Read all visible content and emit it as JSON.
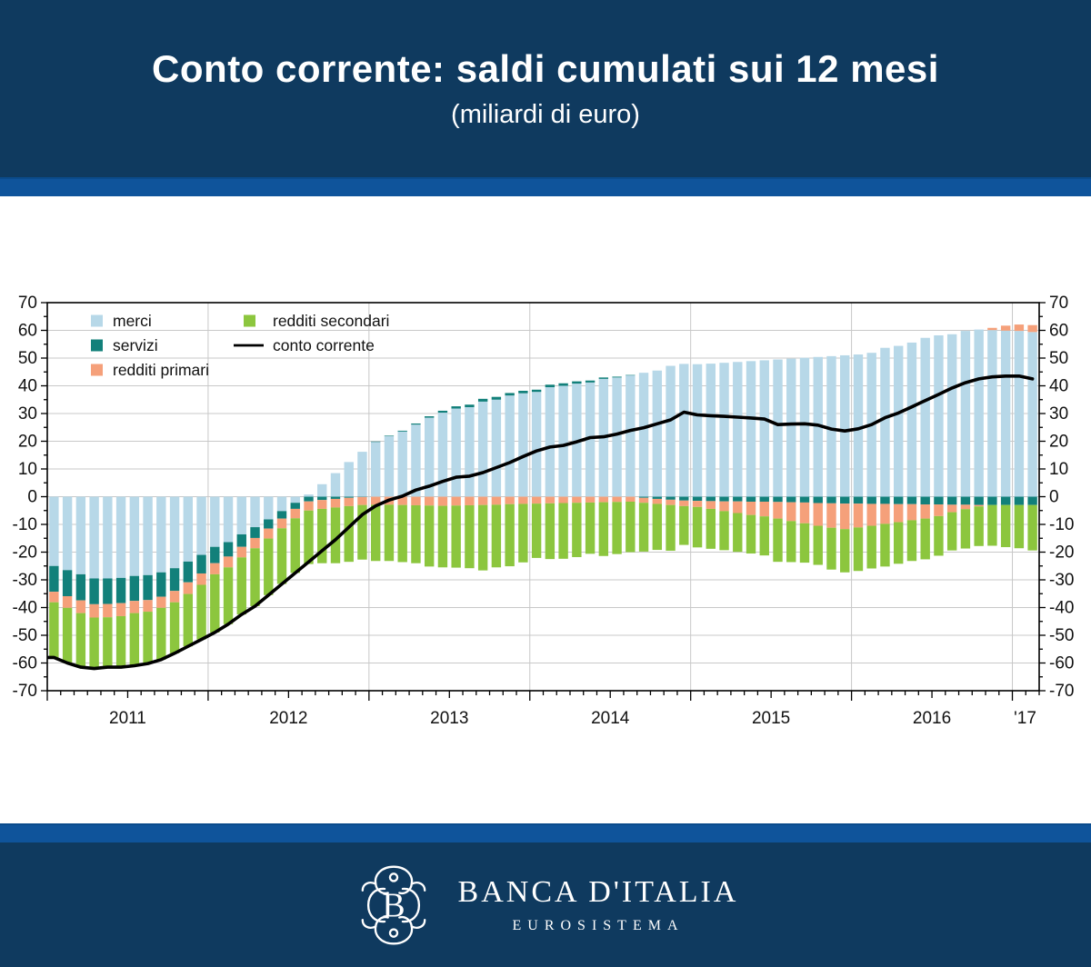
{
  "header": {
    "title": "Conto corrente: saldi cumulati sui 12 mesi",
    "subtitle": "(miliardi di euro)"
  },
  "footer": {
    "name": "BANCA D'ITALIA",
    "subtitle": "EUROSISTEMA",
    "emblem_letter": "B"
  },
  "colors": {
    "navy_band": "#0F3A5F",
    "blue_stripe": "#0F549B",
    "grid": "#C8C8C8",
    "axis": "#000000"
  },
  "chart_data": {
    "type": "stacked-bar-line",
    "title": "Conto corrente: saldi cumulati sui 12 mesi",
    "unit": "miliardi di euro",
    "x": {
      "start": "2011-01",
      "end": "2017-02",
      "n_months": 74,
      "frequency": "monthly"
    },
    "x_tick_labels": [
      "2011",
      "2012",
      "2013",
      "2014",
      "2015",
      "2016",
      "'17"
    ],
    "ylim": [
      -70,
      70
    ],
    "ytick_step": 10,
    "ytick_minor_step": 5,
    "grid": true,
    "legend_position": "top-left",
    "legend_columns": [
      [
        "merci",
        "servizi",
        "redditi primari"
      ],
      [
        "redditi secondari",
        "conto corrente"
      ]
    ],
    "series": [
      {
        "name": "merci",
        "type": "bar",
        "color": "#B7D8E8",
        "values": [
          -25.0,
          -26.5,
          -28.0,
          -29.5,
          -29.5,
          -29.3,
          -28.6,
          -28.3,
          -27.3,
          -25.8,
          -23.4,
          -21.0,
          -18.1,
          -16.4,
          -13.6,
          -11.0,
          -8.2,
          -5.2,
          -2.2,
          0.8,
          4.5,
          8.5,
          12.5,
          16.2,
          19.8,
          21.8,
          23.5,
          26.0,
          28.5,
          30.3,
          31.8,
          32.3,
          34.3,
          35.0,
          36.5,
          37.3,
          37.8,
          39.5,
          40.0,
          40.8,
          41.2,
          42.5,
          43.0,
          43.8,
          44.7,
          45.5,
          47.2,
          47.9,
          47.8,
          48.0,
          48.3,
          48.6,
          48.9,
          49.2,
          49.5,
          49.8,
          50.1,
          50.4,
          50.7,
          51.0,
          51.3,
          51.9,
          53.7,
          54.4,
          55.6,
          57.3,
          58.2,
          58.6,
          59.8,
          60.3,
          60.1,
          59.9,
          59.8,
          59.4
        ]
      },
      {
        "name": "servizi",
        "type": "bar",
        "color": "#12807A",
        "values": [
          -9.3,
          -9.4,
          -9.4,
          -9.3,
          -9.2,
          -9.1,
          -9.0,
          -9.0,
          -8.8,
          -8.2,
          -7.5,
          -6.7,
          -5.9,
          -5.2,
          -4.5,
          -3.9,
          -3.3,
          -2.7,
          -2.2,
          -1.7,
          -1.2,
          -0.8,
          -0.4,
          -0.1,
          0.1,
          0.2,
          0.3,
          0.4,
          0.5,
          0.7,
          0.8,
          0.9,
          1.0,
          1.0,
          0.9,
          0.9,
          0.8,
          0.9,
          0.9,
          0.8,
          0.7,
          0.5,
          0.3,
          0.1,
          -0.4,
          -0.8,
          -1.1,
          -1.4,
          -1.5,
          -1.6,
          -1.7,
          -1.7,
          -1.8,
          -1.8,
          -1.9,
          -2.0,
          -2.1,
          -2.3,
          -2.4,
          -2.5,
          -2.5,
          -2.6,
          -2.6,
          -2.7,
          -2.7,
          -2.8,
          -2.8,
          -2.9,
          -2.9,
          -3.0,
          -3.0,
          -3.0,
          -3.0,
          -3.0
        ]
      },
      {
        "name": "redditi primari",
        "type": "bar",
        "color": "#F5A07A",
        "values": [
          -3.8,
          -4.2,
          -4.6,
          -4.8,
          -4.8,
          -4.7,
          -4.4,
          -4.2,
          -4.0,
          -4.1,
          -4.2,
          -4.1,
          -4.0,
          -3.9,
          -3.8,
          -3.7,
          -3.6,
          -3.5,
          -3.4,
          -3.3,
          -3.2,
          -3.1,
          -3.0,
          -2.9,
          -2.9,
          -2.9,
          -3.0,
          -3.1,
          -3.2,
          -3.3,
          -3.2,
          -3.1,
          -3.0,
          -2.9,
          -2.7,
          -2.6,
          -2.5,
          -2.4,
          -2.3,
          -2.2,
          -2.1,
          -2.0,
          -1.9,
          -1.8,
          -1.8,
          -1.8,
          -1.9,
          -2.0,
          -2.2,
          -2.8,
          -3.5,
          -4.2,
          -4.8,
          -5.3,
          -6.0,
          -6.8,
          -7.5,
          -8.2,
          -8.8,
          -9.2,
          -8.6,
          -7.9,
          -7.2,
          -6.5,
          -5.8,
          -5.1,
          -4.2,
          -2.7,
          -1.6,
          -0.5,
          0.8,
          1.8,
          2.3,
          2.5
        ]
      },
      {
        "name": "redditi secondari",
        "type": "bar",
        "color": "#8CC63E",
        "values": [
          -19.9,
          -19.9,
          -19.5,
          -18.4,
          -18.0,
          -18.4,
          -19.0,
          -18.7,
          -18.7,
          -18.4,
          -18.9,
          -19.7,
          -21.0,
          -20.5,
          -20.6,
          -20.9,
          -20.4,
          -20.1,
          -19.7,
          -19.3,
          -19.6,
          -20.1,
          -20.1,
          -19.7,
          -20.3,
          -20.3,
          -20.6,
          -20.9,
          -22.0,
          -22.2,
          -22.4,
          -22.7,
          -23.6,
          -22.6,
          -22.4,
          -21.1,
          -19.6,
          -20.1,
          -20.1,
          -19.6,
          -18.5,
          -19.4,
          -18.8,
          -18.2,
          -17.6,
          -16.6,
          -16.5,
          -14.0,
          -14.6,
          -14.4,
          -14.1,
          -14.0,
          -13.9,
          -14.1,
          -15.6,
          -14.8,
          -14.2,
          -14.1,
          -15.1,
          -15.6,
          -15.7,
          -15.4,
          -15.4,
          -15.0,
          -14.7,
          -14.7,
          -14.3,
          -13.8,
          -14.2,
          -14.3,
          -14.7,
          -15.2,
          -15.6,
          -16.4
        ]
      },
      {
        "name": "conto corrente",
        "type": "line",
        "color": "#000000",
        "values": [
          -58.0,
          -60.0,
          -61.5,
          -62.0,
          -61.5,
          -61.5,
          -61.0,
          -60.2,
          -58.8,
          -56.5,
          -54.0,
          -51.5,
          -49.0,
          -46.0,
          -42.5,
          -39.5,
          -35.5,
          -31.5,
          -27.5,
          -23.5,
          -19.5,
          -15.5,
          -11.0,
          -6.5,
          -3.3,
          -1.2,
          0.2,
          2.4,
          3.8,
          5.5,
          7.0,
          7.4,
          8.7,
          10.5,
          12.3,
          14.5,
          16.5,
          17.9,
          18.5,
          19.8,
          21.3,
          21.6,
          22.6,
          23.9,
          24.9,
          26.3,
          27.7,
          30.5,
          29.5,
          29.2,
          29.0,
          28.7,
          28.4,
          28.0,
          26.0,
          26.2,
          26.3,
          25.8,
          24.4,
          23.7,
          24.5,
          26.0,
          28.5,
          30.2,
          32.4,
          34.7,
          36.9,
          39.2,
          41.1,
          42.5,
          43.2,
          43.5,
          43.5,
          42.5
        ]
      }
    ]
  }
}
